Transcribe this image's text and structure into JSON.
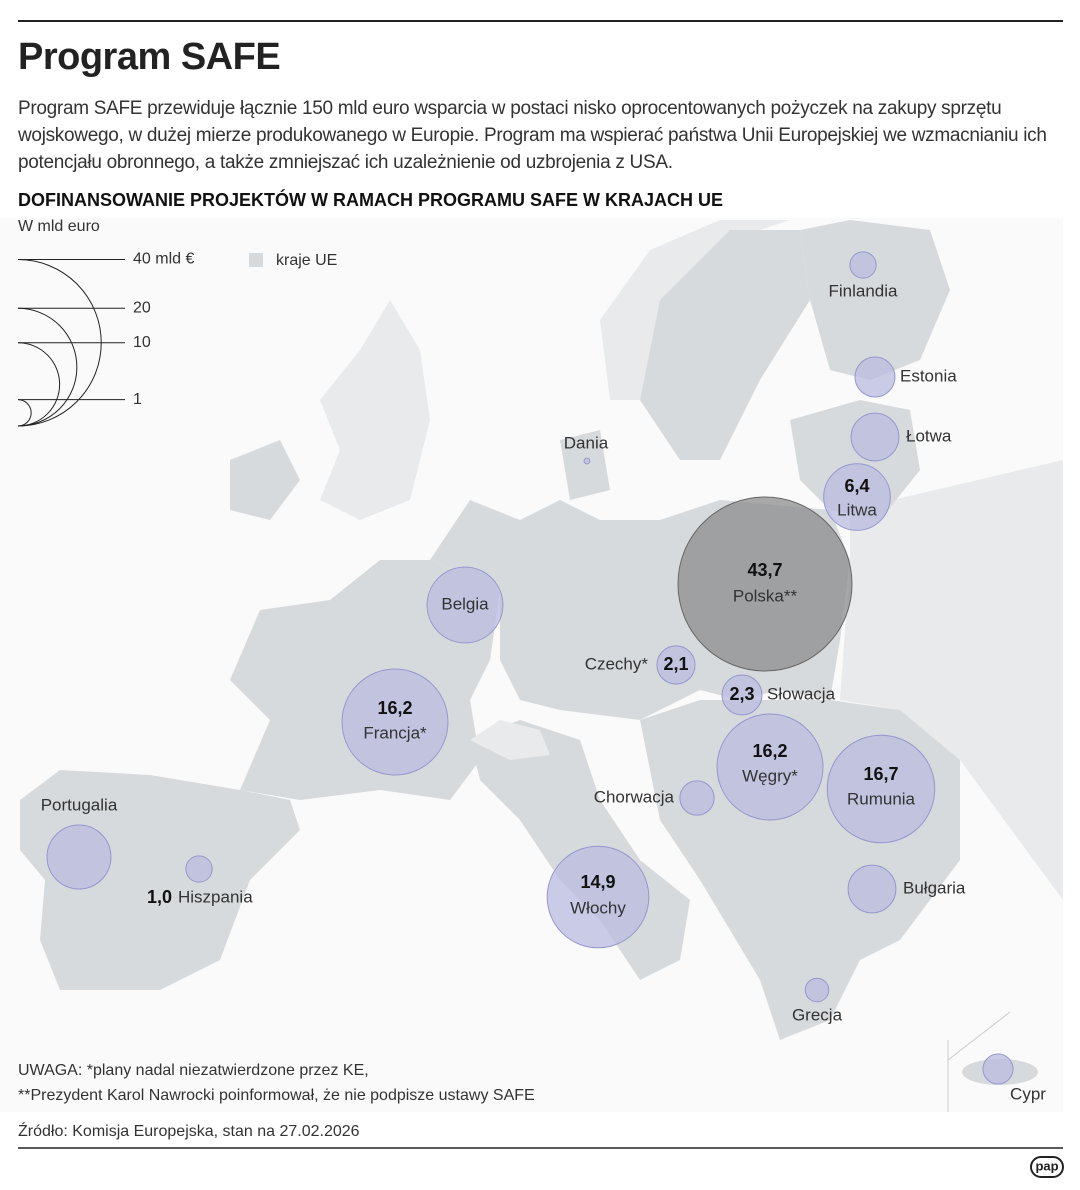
{
  "header": {
    "title": "Program SAFE",
    "description": "Program SAFE przewiduje łącznie 150 mld euro wsparcia w postaci nisko oprocentowanych pożyczek na zakupy sprzętu wojskowego, w dużej mierze produkowanego w Europie. Program ma wspierać państwa Unii Europejskiej we wzmacnianiu ich potencjału obronnego, a także zmniejszać ich uzależnienie od uzbrojenia z USA."
  },
  "map": {
    "title": "DOFINANSOWANIE PROJEKTÓW W RAMACH PROGRAMU SAFE W KRAJACH UE",
    "unit": "W mld euro",
    "color": "#b9bbdf",
    "legend": {
      "sizes": [
        {
          "value": 40,
          "label": "40 mld €"
        },
        20,
        10,
        1
      ],
      "land": "kraje UE"
    },
    "countries": [
      {
        "name": "Finlandia",
        "value": 1.0
      },
      {
        "name": "Estonia",
        "value": 2.3
      },
      {
        "name": "Łotwa",
        "value": 3.3
      },
      {
        "name": "Litwa",
        "value": 6.4,
        "value_label": "6,4"
      },
      {
        "name": "Polska**",
        "value": 43.7,
        "value_label": "43,7",
        "color": "#8c8c8c"
      },
      {
        "name": "Dania",
        "value": 0.05
      },
      {
        "name": "Belgia",
        "value": 8.3
      },
      {
        "name": "Czechy*",
        "value": 2.1,
        "value_label": "2,1"
      },
      {
        "name": "Słowacja",
        "value": 2.3,
        "value_label": "2,3"
      },
      {
        "name": "Francja*",
        "value": 16.2,
        "value_label": "16,2"
      },
      {
        "name": "Węgry*",
        "value": 16.2,
        "value_label": "16,2"
      },
      {
        "name": "Rumunia",
        "value": 16.7,
        "value_label": "16,7"
      },
      {
        "name": "Chorwacja",
        "value": 1.7
      },
      {
        "name": "Portugalia",
        "value": 5.9
      },
      {
        "name": "Hiszpania",
        "value": 1.0,
        "value_label": "1,0"
      },
      {
        "name": "Włochy",
        "value": 14.9,
        "value_label": "14,9"
      },
      {
        "name": "Bułgaria",
        "value": 3.3
      },
      {
        "name": "Grecja",
        "value": 0.8
      },
      {
        "name": "Cypr",
        "value": 1.3
      }
    ]
  },
  "notes": [
    "UWAGA: *plany nadal niezatwierdzone przez KE,",
    "**Prezydent Karol Nawrocki poinformował, że nie podpisze ustawy SAFE"
  ],
  "source": "Źródło: Komisja Europejska, stan na 27.02.2026",
  "logo": "pap"
}
